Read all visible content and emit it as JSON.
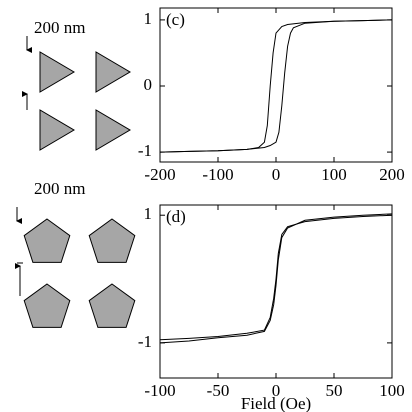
{
  "scale_labels": [
    "200 nm",
    "200 nm"
  ],
  "chart_data": [
    {
      "type": "line",
      "label": "(c)",
      "xlim": [
        -200,
        200
      ],
      "xticks": [
        -200,
        -100,
        0,
        100,
        200
      ],
      "ylim": [
        -1.15,
        1.18
      ],
      "yticks": [
        -1,
        0,
        1
      ],
      "series": [
        {
          "color": "#000000",
          "x": [
            200,
            150,
            100,
            50,
            20,
            10,
            0,
            -5,
            -10,
            -15,
            -20,
            -30,
            -50,
            -100,
            -150,
            -200
          ],
          "values": [
            1,
            0.99,
            0.98,
            0.96,
            0.93,
            0.9,
            0.8,
            0.5,
            0.0,
            -0.6,
            -0.85,
            -0.93,
            -0.96,
            -0.98,
            -0.99,
            -1
          ]
        },
        {
          "color": "#000000",
          "x": [
            -200,
            -150,
            -100,
            -50,
            -20,
            -10,
            0,
            5,
            10,
            15,
            20,
            25,
            30,
            50,
            100,
            150,
            200
          ],
          "values": [
            -1,
            -0.99,
            -0.98,
            -0.96,
            -0.93,
            -0.9,
            -0.85,
            -0.7,
            -0.3,
            0.2,
            0.6,
            0.8,
            0.88,
            0.95,
            0.98,
            0.99,
            1
          ]
        }
      ]
    },
    {
      "type": "line",
      "label": "(d)",
      "xlabel": "Field (Oe)",
      "xlim": [
        -100,
        100
      ],
      "xticks": [
        -100,
        -50,
        0,
        50,
        100
      ],
      "ylim": [
        -1.55,
        1.16
      ],
      "yticks": [
        -1,
        1
      ],
      "series": [
        {
          "color": "#000000",
          "x": [
            -100,
            -75,
            -50,
            -25,
            -10,
            -5,
            -2,
            0,
            2,
            5,
            10,
            25,
            50,
            75,
            100
          ],
          "values": [
            -0.95,
            -0.93,
            -0.9,
            -0.85,
            -0.8,
            -0.6,
            -0.3,
            0,
            0.4,
            0.7,
            0.82,
            0.9,
            0.95,
            0.98,
            1.0
          ]
        },
        {
          "color": "#000000",
          "x": [
            -100,
            -75,
            -50,
            -25,
            -10,
            -5,
            -2,
            0,
            2,
            5,
            10,
            25,
            50,
            75,
            100
          ],
          "values": [
            -1.0,
            -0.97,
            -0.92,
            -0.88,
            -0.82,
            -0.65,
            -0.4,
            -0.1,
            0.3,
            0.65,
            0.8,
            0.92,
            0.97,
            1.0,
            1.02
          ]
        }
      ]
    }
  ]
}
